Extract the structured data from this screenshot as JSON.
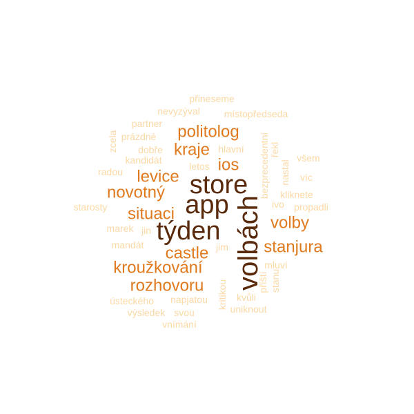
{
  "word_cloud": {
    "palette": {
      "darkest": "#5a2a0c",
      "dark": "#e07a1f",
      "medium": "#f2a55a",
      "light": "#fbd9a6"
    },
    "words": [
      {
        "text": "volbách",
        "tone": "darkest"
      },
      {
        "text": "store",
        "tone": "darkest"
      },
      {
        "text": "app",
        "tone": "darkest"
      },
      {
        "text": "týden",
        "tone": "darkest"
      },
      {
        "text": "politolog",
        "tone": "dark"
      },
      {
        "text": "kraje",
        "tone": "dark"
      },
      {
        "text": "ios",
        "tone": "dark"
      },
      {
        "text": "levice",
        "tone": "dark"
      },
      {
        "text": "novotný",
        "tone": "dark"
      },
      {
        "text": "situaci",
        "tone": "dark"
      },
      {
        "text": "volby",
        "tone": "dark"
      },
      {
        "text": "castle",
        "tone": "dark"
      },
      {
        "text": "stanjura",
        "tone": "dark"
      },
      {
        "text": "kroužkování",
        "tone": "dark"
      },
      {
        "text": "rozhovoru",
        "tone": "dark"
      },
      {
        "text": "přineseme",
        "tone": "light"
      },
      {
        "text": "nevyzýval",
        "tone": "light"
      },
      {
        "text": "místopředseda",
        "tone": "light"
      },
      {
        "text": "partner",
        "tone": "light"
      },
      {
        "text": "zcela",
        "tone": "light"
      },
      {
        "text": "prázdné",
        "tone": "light"
      },
      {
        "text": "dobře",
        "tone": "light"
      },
      {
        "text": "hlavní",
        "tone": "light"
      },
      {
        "text": "bezprecedentní",
        "tone": "light"
      },
      {
        "text": "řekl",
        "tone": "light"
      },
      {
        "text": "kandidát",
        "tone": "light"
      },
      {
        "text": "nastal",
        "tone": "light"
      },
      {
        "text": "všem",
        "tone": "light"
      },
      {
        "text": "letos",
        "tone": "light"
      },
      {
        "text": "radou",
        "tone": "light"
      },
      {
        "text": "víc",
        "tone": "light"
      },
      {
        "text": "kliknete",
        "tone": "light"
      },
      {
        "text": "ivo",
        "tone": "light"
      },
      {
        "text": "starosty",
        "tone": "light"
      },
      {
        "text": "propadli",
        "tone": "light"
      },
      {
        "text": "marek",
        "tone": "light"
      },
      {
        "text": "jin",
        "tone": "light"
      },
      {
        "text": "mandát",
        "tone": "light"
      },
      {
        "text": "jim",
        "tone": "light"
      },
      {
        "text": "mluví",
        "tone": "light"
      },
      {
        "text": "příští",
        "tone": "light"
      },
      {
        "text": "stanu",
        "tone": "light"
      },
      {
        "text": "kritikou",
        "tone": "light"
      },
      {
        "text": "ústeckého",
        "tone": "light"
      },
      {
        "text": "napjatou",
        "tone": "light"
      },
      {
        "text": "kvůli",
        "tone": "light"
      },
      {
        "text": "uniknout",
        "tone": "light"
      },
      {
        "text": "výsledek",
        "tone": "light"
      },
      {
        "text": "svou",
        "tone": "light"
      },
      {
        "text": "vnímání",
        "tone": "light"
      }
    ]
  }
}
